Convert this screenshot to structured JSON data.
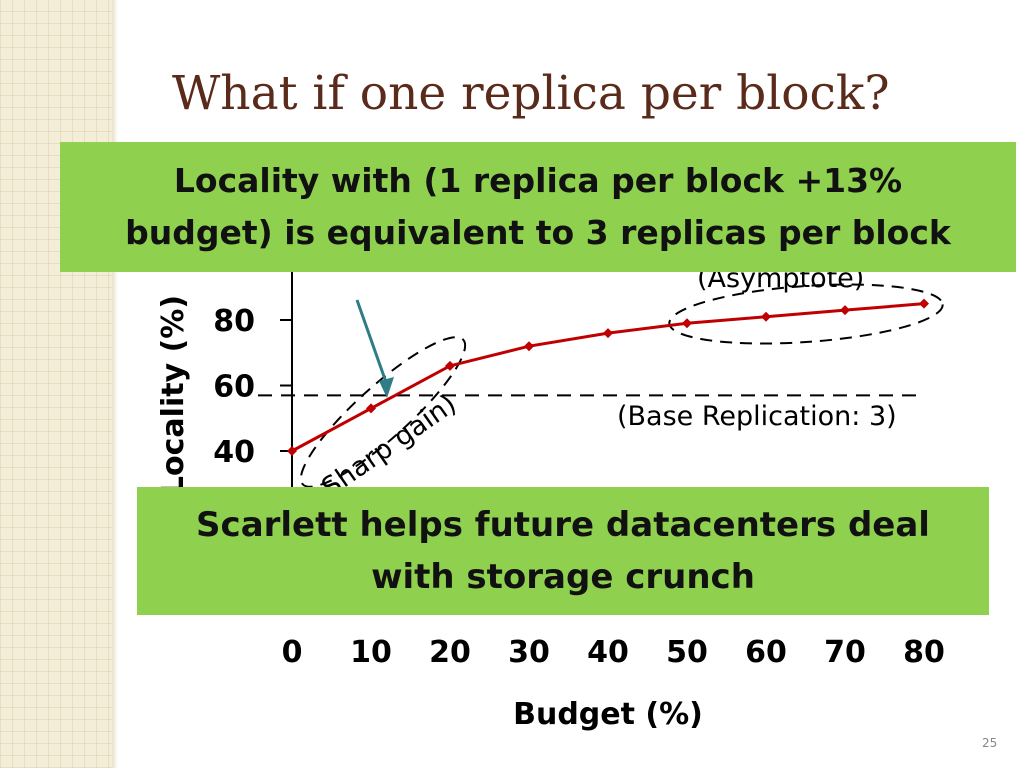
{
  "slide": {
    "title": "What if one replica per block?",
    "callout_top": {
      "line1": "Locality with (1 replica per block +13%",
      "line2": "budget) is equivalent to 3 replicas per block"
    },
    "callout_bottom": {
      "line1": "Scarlett helps future datacenters deal",
      "line2": "with storage crunch"
    },
    "page_number": "25"
  },
  "chart_data": {
    "type": "line",
    "xlabel": "Budget (%)",
    "ylabel": "Locality (%)",
    "x_ticks": [
      "0",
      "10",
      "20",
      "30",
      "40",
      "50",
      "60",
      "70",
      "80"
    ],
    "y_ticks": [
      "40",
      "60",
      "80"
    ],
    "xlim": [
      0,
      80
    ],
    "ylim": [
      40,
      80
    ],
    "series": [
      {
        "color": "#c00000",
        "points": [
          {
            "x": 0,
            "y": 40
          },
          {
            "x": 10,
            "y": 53
          },
          {
            "x": 20,
            "y": 66
          },
          {
            "x": 30,
            "y": 72
          },
          {
            "x": 40,
            "y": 76
          },
          {
            "x": 50,
            "y": 79
          },
          {
            "x": 60,
            "y": 81
          },
          {
            "x": 70,
            "y": 83
          },
          {
            "x": 80,
            "y": 85
          }
        ]
      }
    ],
    "baseline": {
      "y": 57,
      "label": "(Base Replication: 3)"
    },
    "annotations": {
      "sharp_gain": "Sharp gain)",
      "asymptote": "(Asymptote)"
    }
  }
}
